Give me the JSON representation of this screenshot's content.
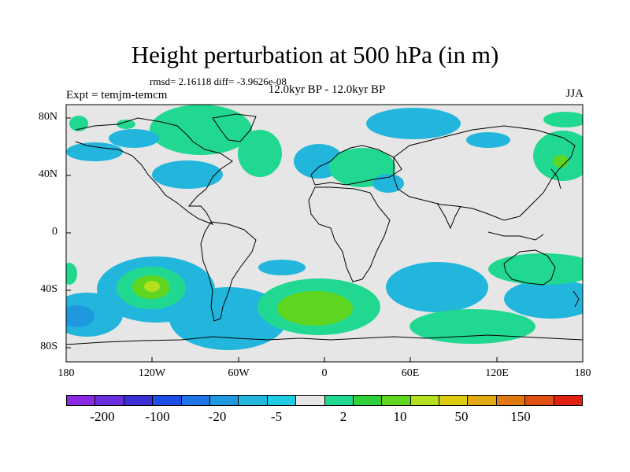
{
  "title": "Height perturbation at 500 hPa (in m)",
  "stats": "rmsd= 2.16118  diff= -3.9626e-08",
  "experiment": "Expt = temjm-temcm",
  "period": "12.0kyr BP - 12.0kyr BP",
  "season": "JJA",
  "lat_ticks": [
    "80N",
    "40N",
    "0",
    "40S",
    "80S"
  ],
  "lon_ticks": [
    "180",
    "120W",
    "60W",
    "0",
    "60E",
    "120E",
    "180"
  ],
  "colorbar": {
    "colors": [
      "#8a2be2",
      "#6a2fdc",
      "#3a30d4",
      "#1e4ee6",
      "#1f74e8",
      "#1f98e0",
      "#22b6dc",
      "#1fcce6",
      "#e6e6e6",
      "#21d890",
      "#2fd03a",
      "#5fd620",
      "#b5e020",
      "#dccc10",
      "#e0aa10",
      "#e07a10",
      "#e05010",
      "#e02010"
    ],
    "labels": [
      "-200",
      "-100",
      "-20",
      "-5",
      "2",
      "10",
      "50",
      "150"
    ]
  },
  "map_layers": {
    "ocean": "#e6e6e6",
    "coast": "#000000"
  }
}
